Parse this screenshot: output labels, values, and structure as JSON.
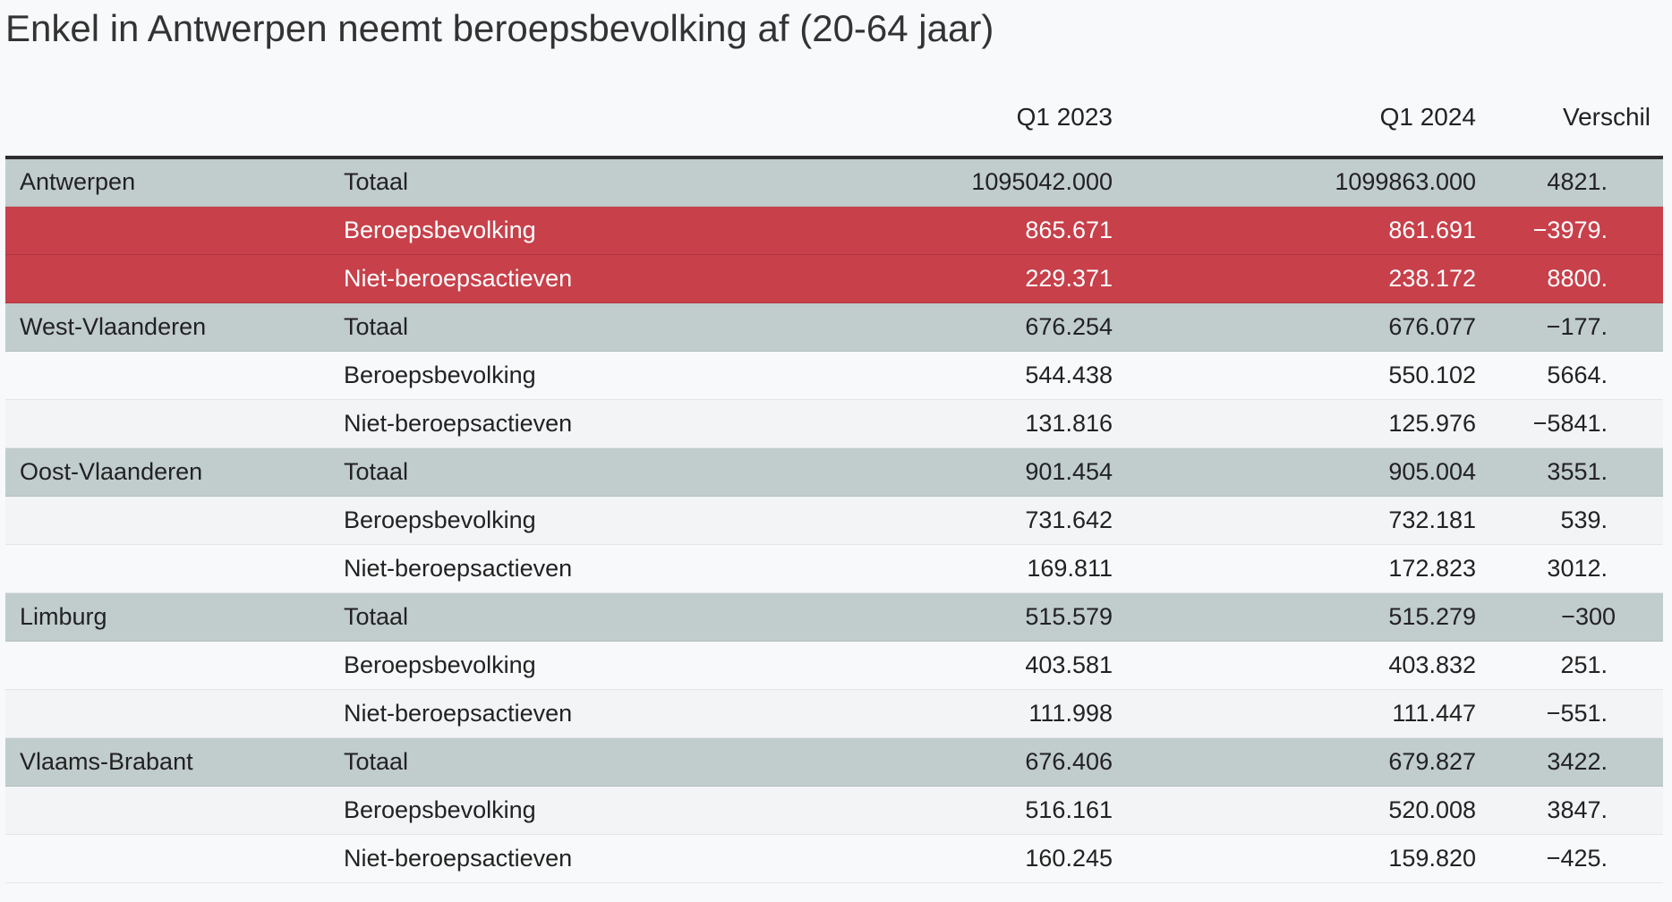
{
  "title": "Enkel in Antwerpen neemt beroepsbevolking af (20-64 jaar)",
  "colors": {
    "highlight": "#c7404a",
    "total_row": "#c1cccd",
    "background": "#f8f9fb"
  },
  "chart_data": {
    "type": "table",
    "title": "Enkel in Antwerpen neemt beroepsbevolking af (20-64 jaar)",
    "columns": [
      "",
      "",
      "Q1 2023",
      "Q1 2024",
      "Verschil"
    ],
    "rows": [
      {
        "region": "Antwerpen",
        "category": "Totaal",
        "q1_2023": "1095042.000",
        "q1_2024": "1099863.000",
        "verschil": "4821."
      },
      {
        "region": "",
        "category": "Beroepsbevolking",
        "q1_2023": "865.671",
        "q1_2024": "861.691",
        "verschil": "−3979."
      },
      {
        "region": "",
        "category": "Niet-beroepsactieven",
        "q1_2023": "229.371",
        "q1_2024": "238.172",
        "verschil": "8800."
      },
      {
        "region": "West-Vlaanderen",
        "category": "Totaal",
        "q1_2023": "676.254",
        "q1_2024": "676.077",
        "verschil": "−177."
      },
      {
        "region": "",
        "category": "Beroepsbevolking",
        "q1_2023": "544.438",
        "q1_2024": "550.102",
        "verschil": "5664."
      },
      {
        "region": "",
        "category": "Niet-beroepsactieven",
        "q1_2023": "131.816",
        "q1_2024": "125.976",
        "verschil": "−5841."
      },
      {
        "region": "Oost-Vlaanderen",
        "category": "Totaal",
        "q1_2023": "901.454",
        "q1_2024": "905.004",
        "verschil": "3551."
      },
      {
        "region": "",
        "category": "Beroepsbevolking",
        "q1_2023": "731.642",
        "q1_2024": "732.181",
        "verschil": "539."
      },
      {
        "region": "",
        "category": "Niet-beroepsactieven",
        "q1_2023": "169.811",
        "q1_2024": "172.823",
        "verschil": "3012."
      },
      {
        "region": "Limburg",
        "category": "Totaal",
        "q1_2023": "515.579",
        "q1_2024": "515.279",
        "verschil": "−300"
      },
      {
        "region": "",
        "category": "Beroepsbevolking",
        "q1_2023": "403.581",
        "q1_2024": "403.832",
        "verschil": "251."
      },
      {
        "region": "",
        "category": "Niet-beroepsactieven",
        "q1_2023": "111.998",
        "q1_2024": "111.447",
        "verschil": "−551."
      },
      {
        "region": "Vlaams-Brabant",
        "category": "Totaal",
        "q1_2023": "676.406",
        "q1_2024": "679.827",
        "verschil": "3422."
      },
      {
        "region": "",
        "category": "Beroepsbevolking",
        "q1_2023": "516.161",
        "q1_2024": "520.008",
        "verschil": "3847."
      },
      {
        "region": "",
        "category": "Niet-beroepsactieven",
        "q1_2023": "160.245",
        "q1_2024": "159.820",
        "verschil": "−425."
      }
    ],
    "highlighted_rows": [
      1,
      2
    ]
  }
}
